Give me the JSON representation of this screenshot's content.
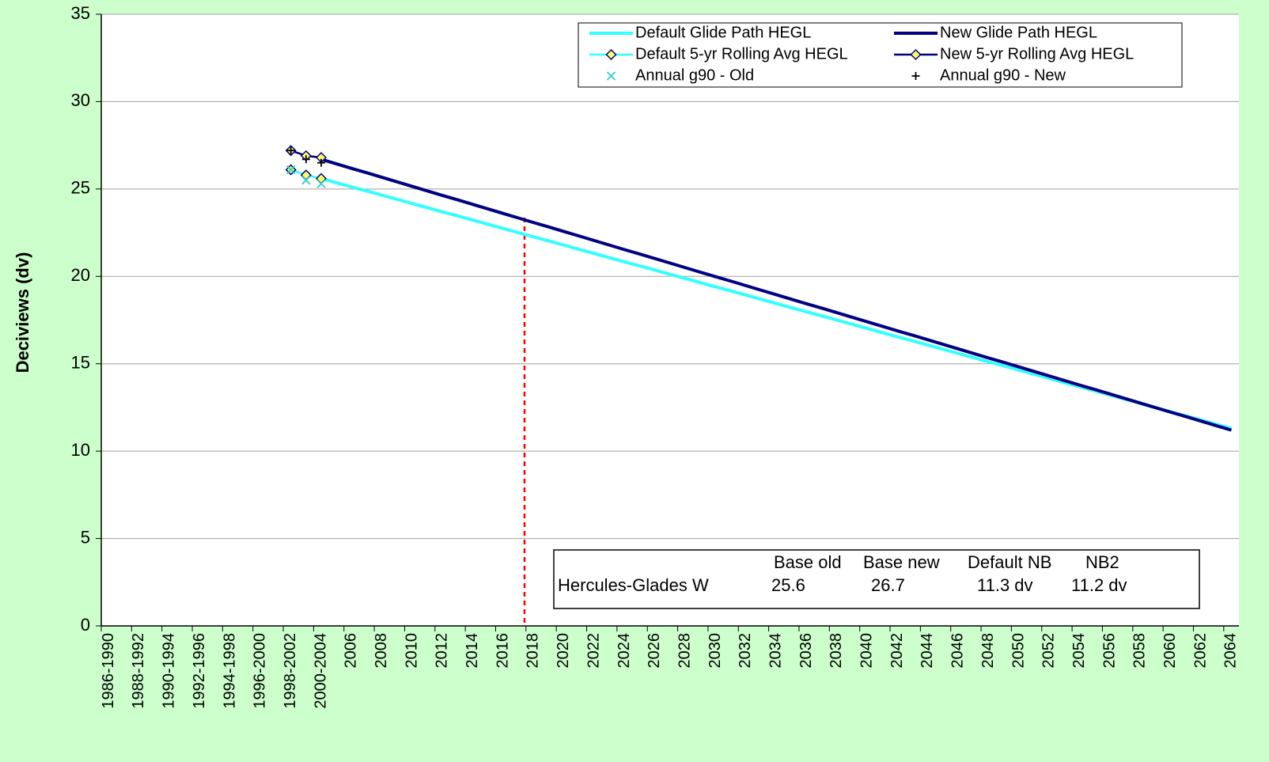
{
  "chart_data": {
    "type": "line",
    "y_label": "Deciviews (dv)",
    "ylim": [
      0,
      35
    ],
    "yticks": [
      0,
      5,
      10,
      15,
      20,
      25,
      30,
      35
    ],
    "grid": true,
    "legend": "top-right",
    "categories": [
      "1986-1990",
      null,
      "1988-1992",
      null,
      "1990-1994",
      null,
      "1992-1996",
      null,
      "1994-1998",
      null,
      "1996-2000",
      null,
      "1998-2002",
      null,
      "2000-2004",
      null,
      "2006",
      null,
      "2008",
      null,
      "2010",
      null,
      "2012",
      null,
      "2014",
      null,
      "2016",
      null,
      "2018",
      null,
      "2020",
      null,
      "2022",
      null,
      "2024",
      null,
      "2026",
      null,
      "2028",
      null,
      "2030",
      null,
      "2032",
      null,
      "2034",
      null,
      "2036",
      null,
      "2038",
      null,
      "2040",
      null,
      "2042",
      null,
      "2044",
      null,
      "2046",
      null,
      "2048",
      null,
      "2050",
      null,
      "2052",
      null,
      "2054",
      null,
      "2056",
      null,
      "2058",
      null,
      "2060",
      null,
      "2062",
      null,
      "2064"
    ],
    "series": [
      {
        "name": "Default Glide Path HEGL",
        "color": "#33ffff",
        "line": true,
        "marker": "none",
        "values": [
          null,
          null,
          null,
          null,
          null,
          null,
          null,
          null,
          null,
          null,
          null,
          null,
          null,
          null,
          25.6,
          25.36,
          25.12,
          24.89,
          24.65,
          24.41,
          24.17,
          23.93,
          23.69,
          23.46,
          23.22,
          22.98,
          22.74,
          22.5,
          22.26,
          22.03,
          21.79,
          21.55,
          21.31,
          21.07,
          20.83,
          20.6,
          20.36,
          20.12,
          19.88,
          19.64,
          19.4,
          19.17,
          18.93,
          18.69,
          18.45,
          18.21,
          17.97,
          17.74,
          17.5,
          17.26,
          17.02,
          16.78,
          16.54,
          16.31,
          16.07,
          15.83,
          15.59,
          15.35,
          15.11,
          14.88,
          14.64,
          14.4,
          14.16,
          13.92,
          13.68,
          13.45,
          13.21,
          12.97,
          12.73,
          12.49,
          12.25,
          12.02,
          11.78,
          11.54,
          11.3
        ]
      },
      {
        "name": "New Glide Path HEGL",
        "color": "#000080",
        "line": true,
        "marker": "none",
        "values": [
          null,
          null,
          null,
          null,
          null,
          null,
          null,
          null,
          null,
          null,
          null,
          null,
          null,
          null,
          26.7,
          26.44,
          26.18,
          25.93,
          25.67,
          25.41,
          25.15,
          24.89,
          24.63,
          24.38,
          24.12,
          23.86,
          23.6,
          23.34,
          23.08,
          22.83,
          22.57,
          22.31,
          22.05,
          21.79,
          21.53,
          21.28,
          21.02,
          20.76,
          20.5,
          20.24,
          19.98,
          19.73,
          19.47,
          19.21,
          18.95,
          18.69,
          18.43,
          18.18,
          17.92,
          17.66,
          17.4,
          17.14,
          16.88,
          16.63,
          16.37,
          16.11,
          15.85,
          15.59,
          15.33,
          15.08,
          14.82,
          14.56,
          14.3,
          14.04,
          13.78,
          13.53,
          13.27,
          13.01,
          12.75,
          12.49,
          12.23,
          11.98,
          11.72,
          11.46,
          11.2
        ]
      },
      {
        "name": "Default 5-yr Rolling Avg HEGL",
        "color": "#33ffff",
        "line": true,
        "marker": "diamond",
        "values": [
          null,
          null,
          null,
          null,
          null,
          null,
          null,
          null,
          null,
          null,
          null,
          null,
          26.1,
          25.8,
          25.6,
          null,
          null,
          null,
          null,
          null,
          null,
          null,
          null,
          null,
          null,
          null,
          null,
          null,
          null,
          null,
          null,
          null,
          null,
          null,
          null,
          null,
          null,
          null,
          null,
          null,
          null,
          null,
          null,
          null,
          null,
          null,
          null,
          null,
          null,
          null,
          null,
          null,
          null,
          null,
          null,
          null,
          null,
          null,
          null,
          null,
          null,
          null,
          null,
          null,
          null,
          null,
          null,
          null,
          null,
          null,
          null,
          null,
          null,
          null,
          null
        ]
      },
      {
        "name": "New 5-yr Rolling Avg HEGL",
        "color": "#000080",
        "line": true,
        "marker": "diamond",
        "values": [
          null,
          null,
          null,
          null,
          null,
          null,
          null,
          null,
          null,
          null,
          null,
          null,
          27.2,
          26.9,
          26.8,
          null,
          null,
          null,
          null,
          null,
          null,
          null,
          null,
          null,
          null,
          null,
          null,
          null,
          null,
          null,
          null,
          null,
          null,
          null,
          null,
          null,
          null,
          null,
          null,
          null,
          null,
          null,
          null,
          null,
          null,
          null,
          null,
          null,
          null,
          null,
          null,
          null,
          null,
          null,
          null,
          null,
          null,
          null,
          null,
          null,
          null,
          null,
          null,
          null,
          null,
          null,
          null,
          null,
          null,
          null,
          null,
          null,
          null,
          null,
          null
        ]
      },
      {
        "name": "Annual g90 - Old",
        "color": "#33cccc",
        "line": false,
        "marker": "x",
        "values": [
          null,
          null,
          null,
          null,
          null,
          null,
          null,
          null,
          null,
          null,
          null,
          null,
          26.1,
          25.5,
          25.3,
          null,
          null,
          null,
          null,
          null,
          null,
          null,
          null,
          null,
          null,
          null,
          null,
          null,
          null,
          null,
          null,
          null,
          null,
          null,
          null,
          null,
          null,
          null,
          null,
          null,
          null,
          null,
          null,
          null,
          null,
          null,
          null,
          null,
          null,
          null,
          null,
          null,
          null,
          null,
          null,
          null,
          null,
          null,
          null,
          null,
          null,
          null,
          null,
          null,
          null,
          null,
          null,
          null,
          null,
          null,
          null,
          null,
          null,
          null,
          null
        ]
      },
      {
        "name": "Annual g90 - New",
        "color": "#000000",
        "line": false,
        "marker": "plus",
        "values": [
          null,
          null,
          null,
          null,
          null,
          null,
          null,
          null,
          null,
          null,
          null,
          null,
          27.2,
          26.7,
          26.5,
          null,
          null,
          null,
          null,
          null,
          null,
          null,
          null,
          null,
          null,
          null,
          null,
          null,
          null,
          null,
          null,
          null,
          null,
          null,
          null,
          null,
          null,
          null,
          null,
          null,
          null,
          null,
          null,
          null,
          null,
          null,
          null,
          null,
          null,
          null,
          null,
          null,
          null,
          null,
          null,
          null,
          null,
          null,
          null,
          null,
          null,
          null,
          null,
          null,
          null,
          null,
          null,
          null,
          null,
          null,
          null,
          null,
          null,
          null,
          null
        ]
      }
    ],
    "info_table": {
      "header": [
        "Base old",
        "Base new",
        "Default NB",
        "NB2"
      ],
      "rows": [
        [
          "Hercules-Glades W",
          "25.6",
          "26.7",
          "11.3 dv",
          "11.2 dv"
        ]
      ]
    }
  }
}
